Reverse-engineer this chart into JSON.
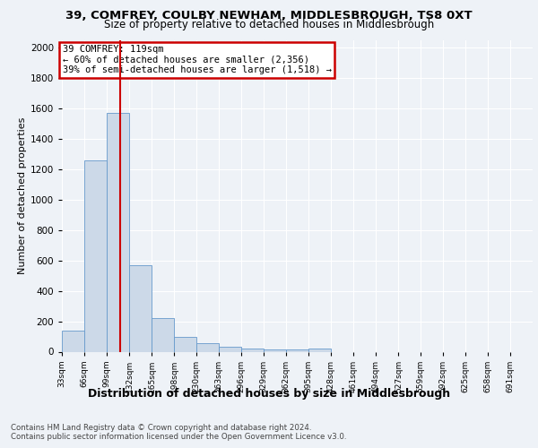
{
  "title1": "39, COMFREY, COULBY NEWHAM, MIDDLESBROUGH, TS8 0XT",
  "title2": "Size of property relative to detached houses in Middlesbrough",
  "xlabel": "Distribution of detached houses by size in Middlesbrough",
  "ylabel": "Number of detached properties",
  "bin_labels": [
    "33sqm",
    "66sqm",
    "99sqm",
    "132sqm",
    "165sqm",
    "198sqm",
    "230sqm",
    "263sqm",
    "296sqm",
    "329sqm",
    "362sqm",
    "395sqm",
    "428sqm",
    "461sqm",
    "494sqm",
    "527sqm",
    "559sqm",
    "592sqm",
    "625sqm",
    "658sqm",
    "691sqm"
  ],
  "bin_starts": [
    33,
    66,
    99,
    132,
    165,
    198,
    230,
    263,
    296,
    329,
    362,
    395,
    428,
    461,
    494,
    527,
    559,
    592,
    625,
    658,
    691
  ],
  "bin_width": 33,
  "bar_heights": [
    140,
    1260,
    1570,
    570,
    220,
    100,
    55,
    30,
    20,
    15,
    15,
    20,
    0,
    0,
    0,
    0,
    0,
    0,
    0,
    0,
    0
  ],
  "bar_color": "#ccd9e8",
  "bar_edgecolor": "#6699cc",
  "property_size": 119,
  "property_line_color": "#cc0000",
  "annotation_line1": "39 COMFREY: 119sqm",
  "annotation_line2": "← 60% of detached houses are smaller (2,356)",
  "annotation_line3": "39% of semi-detached houses are larger (1,518) →",
  "annotation_box_color": "#cc0000",
  "ylim_max": 2050,
  "yticks": [
    0,
    200,
    400,
    600,
    800,
    1000,
    1200,
    1400,
    1600,
    1800,
    2000
  ],
  "footer1": "Contains HM Land Registry data © Crown copyright and database right 2024.",
  "footer2": "Contains public sector information licensed under the Open Government Licence v3.0.",
  "bg_color": "#eef2f7",
  "grid_color": "#ffffff",
  "title1_fontsize": 9.5,
  "title2_fontsize": 8.5,
  "ylabel_fontsize": 8.0,
  "xlabel_fontsize": 9.0,
  "tick_fontsize": 7.5,
  "xtick_fontsize": 6.5,
  "ann_fontsize": 7.5,
  "footer_fontsize": 6.2
}
